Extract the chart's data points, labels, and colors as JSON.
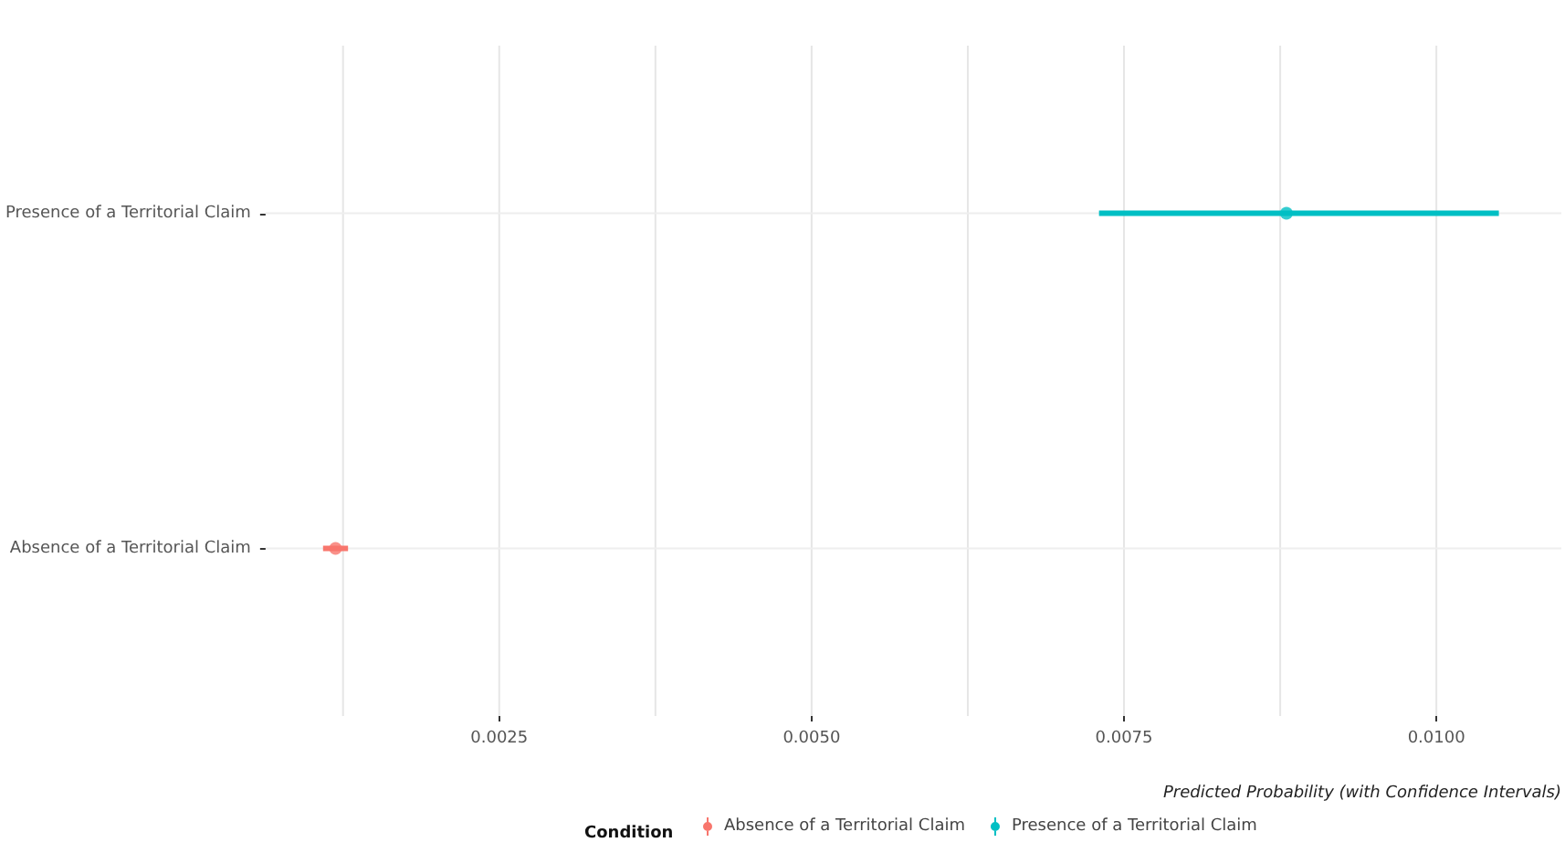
{
  "chart_data": {
    "type": "scatter",
    "orientation": "horizontal",
    "categories": [
      "Presence of a Territorial Claim",
      "Absence of a Territorial Claim"
    ],
    "series": [
      {
        "name": "Absence of a Territorial Claim",
        "color": "#f8766d",
        "values": [
          null,
          0.00119
        ],
        "errors": [
          null,
          [
            0.00109,
            0.00129
          ]
        ]
      },
      {
        "name": "Presence of a Territorial Claim",
        "color": "#00bfc4",
        "values": [
          0.0088,
          null
        ],
        "errors": [
          [
            0.0073,
            0.0105
          ],
          null
        ]
      }
    ],
    "xlabel": "Predicted Probability (with Confidence Intervals)",
    "legend_title": "Condition",
    "xlim": [
      0.00063,
      0.011
    ],
    "xticks": [
      {
        "value": 0.00125,
        "label": null
      },
      0.0025,
      {
        "value": 0.00375,
        "label": null
      },
      {
        "value": 0.005,
        "label": "0.0050"
      },
      {
        "value": 0.00625,
        "label": null
      },
      0.0075,
      {
        "value": 0.00875,
        "label": null
      },
      {
        "value": 0.01,
        "label": "0.0100"
      }
    ],
    "grid": true,
    "legend": "bottom",
    "marker": "circle"
  }
}
